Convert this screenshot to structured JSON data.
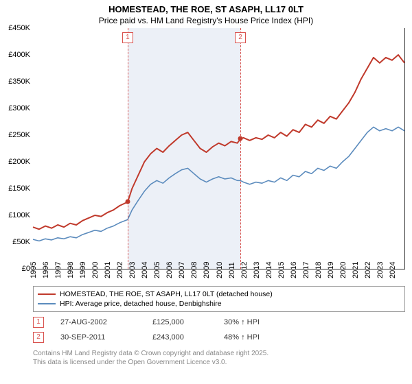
{
  "title": "HOMESTEAD, THE ROE, ST ASAPH, LL17 0LT",
  "subtitle": "Price paid vs. HM Land Registry's House Price Index (HPI)",
  "chart": {
    "type": "line",
    "background_color": "#ffffff",
    "shaded_band_color": "#ecf0f7",
    "axis_color": "#333333",
    "marker_line_color": "#d9534f",
    "y": {
      "min": 0,
      "max": 450000,
      "tick_step": 50000,
      "tick_labels": [
        "£0",
        "£50K",
        "£100K",
        "£150K",
        "£200K",
        "£250K",
        "£300K",
        "£350K",
        "£400K",
        "£450K"
      ]
    },
    "x": {
      "min": 1995,
      "max": 2025,
      "ticks": [
        1995,
        1996,
        1997,
        1998,
        1999,
        2000,
        2001,
        2002,
        2003,
        2004,
        2005,
        2006,
        2007,
        2008,
        2009,
        2010,
        2011,
        2012,
        2013,
        2014,
        2015,
        2016,
        2017,
        2018,
        2019,
        2020,
        2021,
        2022,
        2023,
        2024
      ]
    },
    "shaded_band": {
      "x_start": 2002.65,
      "x_end": 2011.75
    },
    "markers": [
      {
        "idx": "1",
        "x": 2002.65,
        "y": 125000,
        "dot_color": "#c0392b"
      },
      {
        "idx": "2",
        "x": 2011.75,
        "y": 243000,
        "dot_color": "#c0392b"
      }
    ],
    "series": [
      {
        "name": "HOMESTEAD, THE ROE, ST ASAPH, LL17 0LT (detached house)",
        "color": "#c0392b",
        "line_width": 2,
        "points": [
          [
            1995,
            78000
          ],
          [
            1995.5,
            74000
          ],
          [
            1996,
            80000
          ],
          [
            1996.5,
            76000
          ],
          [
            1997,
            82000
          ],
          [
            1997.5,
            78000
          ],
          [
            1998,
            85000
          ],
          [
            1998.5,
            82000
          ],
          [
            1999,
            90000
          ],
          [
            1999.5,
            95000
          ],
          [
            2000,
            100000
          ],
          [
            2000.5,
            98000
          ],
          [
            2001,
            105000
          ],
          [
            2001.5,
            110000
          ],
          [
            2002,
            118000
          ],
          [
            2002.65,
            125000
          ],
          [
            2003,
            150000
          ],
          [
            2003.5,
            175000
          ],
          [
            2004,
            200000
          ],
          [
            2004.5,
            215000
          ],
          [
            2005,
            225000
          ],
          [
            2005.5,
            218000
          ],
          [
            2006,
            230000
          ],
          [
            2006.5,
            240000
          ],
          [
            2007,
            250000
          ],
          [
            2007.5,
            255000
          ],
          [
            2008,
            240000
          ],
          [
            2008.5,
            225000
          ],
          [
            2009,
            218000
          ],
          [
            2009.5,
            228000
          ],
          [
            2010,
            235000
          ],
          [
            2010.5,
            230000
          ],
          [
            2011,
            238000
          ],
          [
            2011.5,
            235000
          ],
          [
            2011.75,
            243000
          ],
          [
            2012,
            245000
          ],
          [
            2012.5,
            240000
          ],
          [
            2013,
            245000
          ],
          [
            2013.5,
            242000
          ],
          [
            2014,
            250000
          ],
          [
            2014.5,
            245000
          ],
          [
            2015,
            255000
          ],
          [
            2015.5,
            248000
          ],
          [
            2016,
            260000
          ],
          [
            2016.5,
            255000
          ],
          [
            2017,
            270000
          ],
          [
            2017.5,
            265000
          ],
          [
            2018,
            278000
          ],
          [
            2018.5,
            272000
          ],
          [
            2019,
            285000
          ],
          [
            2019.5,
            280000
          ],
          [
            2020,
            295000
          ],
          [
            2020.5,
            310000
          ],
          [
            2021,
            330000
          ],
          [
            2021.5,
            355000
          ],
          [
            2022,
            375000
          ],
          [
            2022.5,
            395000
          ],
          [
            2023,
            385000
          ],
          [
            2023.5,
            395000
          ],
          [
            2024,
            390000
          ],
          [
            2024.5,
            400000
          ],
          [
            2025,
            385000
          ]
        ]
      },
      {
        "name": "HPI: Average price, detached house, Denbighshire",
        "color": "#5b8bbd",
        "line_width": 1.6,
        "points": [
          [
            1995,
            55000
          ],
          [
            1995.5,
            52000
          ],
          [
            1996,
            56000
          ],
          [
            1996.5,
            54000
          ],
          [
            1997,
            58000
          ],
          [
            1997.5,
            56000
          ],
          [
            1998,
            60000
          ],
          [
            1998.5,
            58000
          ],
          [
            1999,
            64000
          ],
          [
            1999.5,
            68000
          ],
          [
            2000,
            72000
          ],
          [
            2000.5,
            70000
          ],
          [
            2001,
            76000
          ],
          [
            2001.5,
            80000
          ],
          [
            2002,
            86000
          ],
          [
            2002.65,
            92000
          ],
          [
            2003,
            110000
          ],
          [
            2003.5,
            128000
          ],
          [
            2004,
            145000
          ],
          [
            2004.5,
            158000
          ],
          [
            2005,
            165000
          ],
          [
            2005.5,
            160000
          ],
          [
            2006,
            170000
          ],
          [
            2006.5,
            178000
          ],
          [
            2007,
            185000
          ],
          [
            2007.5,
            188000
          ],
          [
            2008,
            178000
          ],
          [
            2008.5,
            168000
          ],
          [
            2009,
            162000
          ],
          [
            2009.5,
            168000
          ],
          [
            2010,
            172000
          ],
          [
            2010.5,
            168000
          ],
          [
            2011,
            170000
          ],
          [
            2011.5,
            165000
          ],
          [
            2011.75,
            165000
          ],
          [
            2012,
            162000
          ],
          [
            2012.5,
            158000
          ],
          [
            2013,
            162000
          ],
          [
            2013.5,
            160000
          ],
          [
            2014,
            165000
          ],
          [
            2014.5,
            162000
          ],
          [
            2015,
            170000
          ],
          [
            2015.5,
            165000
          ],
          [
            2016,
            175000
          ],
          [
            2016.5,
            172000
          ],
          [
            2017,
            182000
          ],
          [
            2017.5,
            178000
          ],
          [
            2018,
            188000
          ],
          [
            2018.5,
            184000
          ],
          [
            2019,
            192000
          ],
          [
            2019.5,
            188000
          ],
          [
            2020,
            200000
          ],
          [
            2020.5,
            210000
          ],
          [
            2021,
            225000
          ],
          [
            2021.5,
            240000
          ],
          [
            2022,
            255000
          ],
          [
            2022.5,
            265000
          ],
          [
            2023,
            258000
          ],
          [
            2023.5,
            262000
          ],
          [
            2024,
            258000
          ],
          [
            2024.5,
            265000
          ],
          [
            2025,
            258000
          ]
        ]
      }
    ]
  },
  "sales": [
    {
      "idx": "1",
      "date": "27-AUG-2002",
      "price": "£125,000",
      "delta": "30% ↑ HPI"
    },
    {
      "idx": "2",
      "date": "30-SEP-2011",
      "price": "£243,000",
      "delta": "48% ↑ HPI"
    }
  ],
  "attribution": {
    "line1": "Contains HM Land Registry data © Crown copyright and database right 2025.",
    "line2": "This data is licensed under the Open Government Licence v3.0."
  }
}
